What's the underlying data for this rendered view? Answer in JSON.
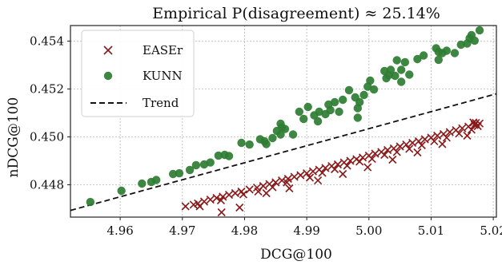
{
  "chart_data": {
    "type": "scatter",
    "title": "Empirical P(disagreement) ≈ 25.14%",
    "xlabel": "DCG@100",
    "ylabel": "nDCG@100",
    "xlim": [
      4.952,
      5.0205
    ],
    "ylim": [
      0.44665,
      0.45465
    ],
    "xticks": [
      4.96,
      4.97,
      4.98,
      4.99,
      5.0,
      5.01,
      5.02
    ],
    "xtick_labels": [
      "4.96",
      "4.97",
      "4.98",
      "4.99",
      "5.00",
      "5.01",
      "5.02"
    ],
    "yticks": [
      0.448,
      0.45,
      0.452,
      0.454
    ],
    "ytick_labels": [
      "0.448",
      "0.450",
      "0.452",
      "0.454"
    ],
    "grid": true,
    "legend_position": "top-left",
    "series": [
      {
        "name": "EASEr",
        "marker": "x",
        "color": "#8b1a1a",
        "points": [
          [
            4.9705,
            0.4471
          ],
          [
            4.9718,
            0.44717
          ],
          [
            4.9725,
            0.44722
          ],
          [
            4.9735,
            0.4473
          ],
          [
            4.9745,
            0.44738
          ],
          [
            4.9755,
            0.44745
          ],
          [
            4.9765,
            0.4475
          ],
          [
            4.9775,
            0.44758
          ],
          [
            4.9785,
            0.44765
          ],
          [
            4.9795,
            0.44772
          ],
          [
            4.9808,
            0.4478
          ],
          [
            4.982,
            0.44788
          ],
          [
            4.983,
            0.44795
          ],
          [
            4.984,
            0.44803
          ],
          [
            4.985,
            0.4481
          ],
          [
            4.986,
            0.44818
          ],
          [
            4.987,
            0.44825
          ],
          [
            4.988,
            0.44833
          ],
          [
            4.989,
            0.4484
          ],
          [
            4.99,
            0.44848
          ],
          [
            4.991,
            0.44856
          ],
          [
            4.992,
            0.44863
          ],
          [
            4.993,
            0.4487
          ],
          [
            4.994,
            0.44878
          ],
          [
            4.995,
            0.44885
          ],
          [
            4.996,
            0.44893
          ],
          [
            4.997,
            0.449
          ],
          [
            4.998,
            0.44907
          ],
          [
            4.999,
            0.44914
          ],
          [
            5.0,
            0.44922
          ],
          [
            5.001,
            0.4493
          ],
          [
            5.002,
            0.44937
          ],
          [
            5.003,
            0.44945
          ],
          [
            5.004,
            0.44952
          ],
          [
            5.005,
            0.4496
          ],
          [
            5.006,
            0.44968
          ],
          [
            5.007,
            0.44975
          ],
          [
            5.008,
            0.44982
          ],
          [
            5.009,
            0.4499
          ],
          [
            5.01,
            0.44997
          ],
          [
            5.011,
            0.45005
          ],
          [
            5.012,
            0.45012
          ],
          [
            5.013,
            0.4502
          ],
          [
            5.014,
            0.45028
          ],
          [
            5.015,
            0.45036
          ],
          [
            5.016,
            0.45043
          ],
          [
            5.017,
            0.4505
          ],
          [
            5.0178,
            0.45056
          ],
          [
            4.9728,
            0.4471
          ],
          [
            4.9762,
            0.44735
          ],
          [
            4.9798,
            0.4476
          ],
          [
            4.9822,
            0.44772
          ],
          [
            4.9845,
            0.4479
          ],
          [
            4.9868,
            0.4481
          ],
          [
            4.9905,
            0.4483
          ],
          [
            4.9925,
            0.4485
          ],
          [
            4.9945,
            0.44865
          ],
          [
            4.9965,
            0.4488
          ],
          [
            4.9985,
            0.44897
          ],
          [
            5.0005,
            0.44908
          ],
          [
            5.0025,
            0.44925
          ],
          [
            5.0045,
            0.44937
          ],
          [
            5.0065,
            0.4495
          ],
          [
            5.0085,
            0.44965
          ],
          [
            5.0105,
            0.44982
          ],
          [
            5.0125,
            0.44997
          ],
          [
            5.0145,
            0.45014
          ],
          [
            5.0165,
            0.4503
          ],
          [
            5.0175,
            0.45045
          ],
          [
            4.9763,
            0.44685
          ],
          [
            4.9792,
            0.44705
          ],
          [
            4.9835,
            0.44765
          ],
          [
            4.9872,
            0.44785
          ],
          [
            4.9918,
            0.44818
          ],
          [
            4.9958,
            0.44845
          ],
          [
            4.9998,
            0.44873
          ],
          [
            5.0038,
            0.44905
          ],
          [
            5.0078,
            0.44935
          ],
          [
            5.0118,
            0.4497
          ],
          [
            5.0158,
            0.45005
          ],
          [
            5.0172,
            0.45058
          ],
          [
            5.0168,
            0.4506
          ]
        ]
      },
      {
        "name": "KUNN",
        "marker": "o",
        "color": "#2e7d32",
        "points": [
          [
            4.9552,
            0.44728
          ],
          [
            4.9602,
            0.44775
          ],
          [
            4.9635,
            0.44805
          ],
          [
            4.965,
            0.44812
          ],
          [
            4.9658,
            0.4482
          ],
          [
            4.9685,
            0.44845
          ],
          [
            4.9695,
            0.44848
          ],
          [
            4.9712,
            0.44862
          ],
          [
            4.9722,
            0.44882
          ],
          [
            4.9735,
            0.44885
          ],
          [
            4.9745,
            0.44893
          ],
          [
            4.9758,
            0.44922
          ],
          [
            4.9768,
            0.44925
          ],
          [
            4.9775,
            0.4492
          ],
          [
            4.9795,
            0.44975
          ],
          [
            4.9808,
            0.44968
          ],
          [
            4.9825,
            0.4499
          ],
          [
            4.9832,
            0.44982
          ],
          [
            4.9835,
            0.4497
          ],
          [
            4.9845,
            0.44995
          ],
          [
            4.9852,
            0.45025
          ],
          [
            4.9858,
            0.45055
          ],
          [
            4.986,
            0.4504
          ],
          [
            4.9865,
            0.45033
          ],
          [
            4.9878,
            0.4501
          ],
          [
            4.9888,
            0.45105
          ],
          [
            4.9895,
            0.45075
          ],
          [
            4.9902,
            0.45125
          ],
          [
            4.9912,
            0.4509
          ],
          [
            4.992,
            0.45105
          ],
          [
            4.993,
            0.45095
          ],
          [
            4.9935,
            0.45135
          ],
          [
            4.9938,
            0.45112
          ],
          [
            4.9945,
            0.45145
          ],
          [
            4.9952,
            0.45105
          ],
          [
            4.9958,
            0.45155
          ],
          [
            4.9968,
            0.45195
          ],
          [
            4.9978,
            0.45165
          ],
          [
            4.9982,
            0.4512
          ],
          [
            4.9985,
            0.45145
          ],
          [
            4.9992,
            0.45175
          ],
          [
            4.9998,
            0.4521
          ],
          [
            5.0002,
            0.45235
          ],
          [
            5.0008,
            0.45198
          ],
          [
            5.0025,
            0.45275
          ],
          [
            5.0028,
            0.45245
          ],
          [
            5.0032,
            0.45258
          ],
          [
            5.0035,
            0.4528
          ],
          [
            5.0042,
            0.45255
          ],
          [
            5.0045,
            0.4532
          ],
          [
            5.0052,
            0.4528
          ],
          [
            5.0058,
            0.45312
          ],
          [
            5.0065,
            0.4526
          ],
          [
            5.0078,
            0.45325
          ],
          [
            5.0088,
            0.4534
          ],
          [
            5.0108,
            0.4537
          ],
          [
            5.0112,
            0.45355
          ],
          [
            5.0118,
            0.4535
          ],
          [
            5.0125,
            0.4536
          ],
          [
            5.0138,
            0.4535
          ],
          [
            5.0148,
            0.45385
          ],
          [
            5.0158,
            0.4539
          ],
          [
            5.0162,
            0.45412
          ],
          [
            5.0165,
            0.45425
          ],
          [
            5.017,
            0.45402
          ],
          [
            5.0178,
            0.45445
          ],
          [
            5.0112,
            0.45322
          ],
          [
            5.0052,
            0.4523
          ],
          [
            4.9982,
            0.4508
          ],
          [
            4.9918,
            0.45065
          ],
          [
            4.9858,
            0.4501
          ]
        ]
      }
    ],
    "trend": {
      "name": "Trend",
      "style": "dashed",
      "color": "#111111",
      "from": [
        4.952,
        0.44693
      ],
      "to": [
        5.0205,
        0.4518
      ]
    }
  }
}
